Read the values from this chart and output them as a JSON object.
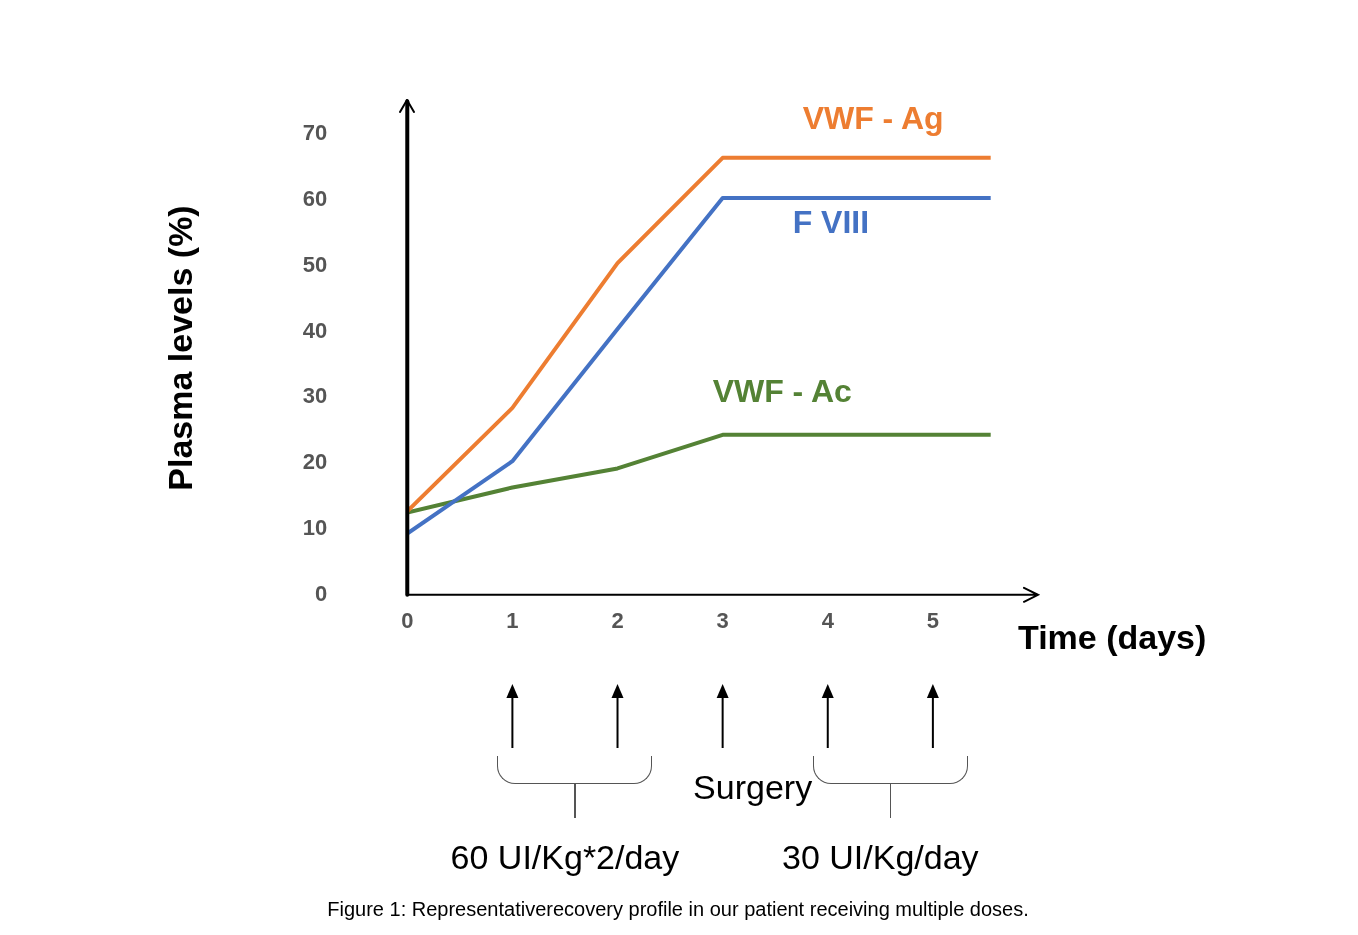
{
  "chart_data": {
    "type": "line",
    "ylabel": "Plasma levels (%)",
    "xlabel": "Time (days)",
    "x": [
      0,
      1,
      2,
      3,
      5.55
    ],
    "xlim": [
      0,
      6
    ],
    "xticks": [
      0,
      1,
      2,
      3,
      4,
      5
    ],
    "ylim": [
      0,
      75
    ],
    "yticks": [
      0,
      10,
      20,
      30,
      40,
      50,
      60,
      70
    ],
    "grid": false,
    "legend": false,
    "marker": "none",
    "line_style": "solid",
    "series": [
      {
        "name": "VWF - Ag",
        "color": "#ed7d31",
        "values": [
          12.7,
          28.4,
          50.4,
          66.4,
          66.4
        ]
      },
      {
        "name": "F VIII",
        "color": "#4472c4",
        "values": [
          9.3,
          20.3,
          40.4,
          60.3,
          60.3
        ]
      },
      {
        "name": "VWF - Ac",
        "color": "#548235",
        "values": [
          12.5,
          16.3,
          19.2,
          24.3,
          24.3
        ]
      }
    ],
    "annotations": [
      "Surgery",
      "60 UI/Kg*2/day",
      "30 UI/Kg/day",
      "Figure 1: Representativerecovery profile in our patient receiving multiple doses."
    ]
  }
}
